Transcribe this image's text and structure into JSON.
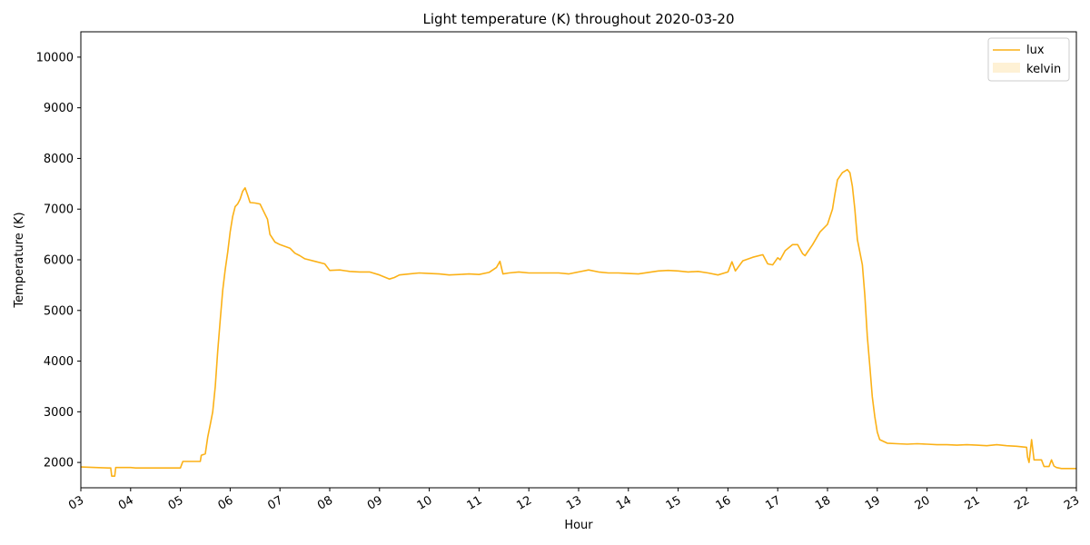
{
  "chart_data": {
    "type": "line",
    "title": "Light temperature (K) throughout 2020-03-20",
    "xlabel": "Hour",
    "ylabel": "Temperature (K)",
    "xlim": [
      3,
      23
    ],
    "ylim": [
      1500,
      10500
    ],
    "x_ticks": [
      3,
      4,
      5,
      6,
      7,
      8,
      9,
      10,
      11,
      12,
      13,
      14,
      15,
      16,
      17,
      18,
      19,
      20,
      21,
      22,
      23
    ],
    "x_tick_labels": [
      "03",
      "04",
      "05",
      "06",
      "07",
      "08",
      "09",
      "10",
      "11",
      "12",
      "13",
      "14",
      "15",
      "16",
      "17",
      "18",
      "19",
      "20",
      "21",
      "22",
      "23"
    ],
    "y_ticks": [
      2000,
      3000,
      4000,
      5000,
      6000,
      7000,
      8000,
      9000,
      10000
    ],
    "y_tick_labels": [
      "2000",
      "3000",
      "4000",
      "5000",
      "6000",
      "7000",
      "8000",
      "9000",
      "10000"
    ],
    "grid": false,
    "legend_position": "top-right",
    "series": [
      {
        "name": "lux",
        "style": "line",
        "color": "#FBB117",
        "points": [
          [
            3.0,
            1910
          ],
          [
            3.3,
            1900
          ],
          [
            3.55,
            1890
          ],
          [
            3.6,
            1890
          ],
          [
            3.62,
            1730
          ],
          [
            3.68,
            1730
          ],
          [
            3.7,
            1900
          ],
          [
            4.0,
            1900
          ],
          [
            4.1,
            1890
          ],
          [
            4.5,
            1890
          ],
          [
            5.0,
            1890
          ],
          [
            5.05,
            2020
          ],
          [
            5.4,
            2020
          ],
          [
            5.42,
            2140
          ],
          [
            5.5,
            2170
          ],
          [
            5.55,
            2500
          ],
          [
            5.6,
            2750
          ],
          [
            5.65,
            3000
          ],
          [
            5.7,
            3500
          ],
          [
            5.75,
            4200
          ],
          [
            5.8,
            4800
          ],
          [
            5.85,
            5400
          ],
          [
            5.9,
            5800
          ],
          [
            5.95,
            6150
          ],
          [
            6.0,
            6550
          ],
          [
            6.05,
            6850
          ],
          [
            6.1,
            7050
          ],
          [
            6.15,
            7100
          ],
          [
            6.2,
            7200
          ],
          [
            6.25,
            7350
          ],
          [
            6.3,
            7420
          ],
          [
            6.35,
            7280
          ],
          [
            6.4,
            7130
          ],
          [
            6.5,
            7120
          ],
          [
            6.6,
            7100
          ],
          [
            6.65,
            7000
          ],
          [
            6.75,
            6800
          ],
          [
            6.8,
            6500
          ],
          [
            6.9,
            6350
          ],
          [
            7.0,
            6300
          ],
          [
            7.2,
            6230
          ],
          [
            7.3,
            6130
          ],
          [
            7.4,
            6080
          ],
          [
            7.5,
            6020
          ],
          [
            7.7,
            5970
          ],
          [
            7.9,
            5920
          ],
          [
            8.0,
            5790
          ],
          [
            8.2,
            5800
          ],
          [
            8.4,
            5770
          ],
          [
            8.6,
            5760
          ],
          [
            8.8,
            5760
          ],
          [
            9.0,
            5700
          ],
          [
            9.2,
            5620
          ],
          [
            9.3,
            5650
          ],
          [
            9.4,
            5700
          ],
          [
            9.6,
            5720
          ],
          [
            9.8,
            5740
          ],
          [
            10.0,
            5730
          ],
          [
            10.2,
            5720
          ],
          [
            10.4,
            5700
          ],
          [
            10.6,
            5710
          ],
          [
            10.8,
            5720
          ],
          [
            11.0,
            5710
          ],
          [
            11.2,
            5750
          ],
          [
            11.35,
            5850
          ],
          [
            11.42,
            5970
          ],
          [
            11.48,
            5720
          ],
          [
            11.6,
            5740
          ],
          [
            11.8,
            5760
          ],
          [
            12.0,
            5740
          ],
          [
            12.2,
            5740
          ],
          [
            12.4,
            5740
          ],
          [
            12.6,
            5740
          ],
          [
            12.8,
            5720
          ],
          [
            13.0,
            5760
          ],
          [
            13.2,
            5800
          ],
          [
            13.4,
            5760
          ],
          [
            13.6,
            5740
          ],
          [
            13.8,
            5740
          ],
          [
            14.0,
            5730
          ],
          [
            14.2,
            5720
          ],
          [
            14.4,
            5750
          ],
          [
            14.6,
            5780
          ],
          [
            14.8,
            5790
          ],
          [
            15.0,
            5780
          ],
          [
            15.2,
            5760
          ],
          [
            15.4,
            5770
          ],
          [
            15.6,
            5740
          ],
          [
            15.8,
            5700
          ],
          [
            16.0,
            5760
          ],
          [
            16.08,
            5960
          ],
          [
            16.15,
            5780
          ],
          [
            16.3,
            5980
          ],
          [
            16.5,
            6050
          ],
          [
            16.7,
            6100
          ],
          [
            16.8,
            5920
          ],
          [
            16.9,
            5900
          ],
          [
            17.0,
            6040
          ],
          [
            17.05,
            6000
          ],
          [
            17.15,
            6180
          ],
          [
            17.3,
            6300
          ],
          [
            17.4,
            6300
          ],
          [
            17.5,
            6120
          ],
          [
            17.55,
            6080
          ],
          [
            17.7,
            6300
          ],
          [
            17.85,
            6550
          ],
          [
            18.0,
            6700
          ],
          [
            18.1,
            7000
          ],
          [
            18.15,
            7300
          ],
          [
            18.2,
            7580
          ],
          [
            18.3,
            7720
          ],
          [
            18.4,
            7780
          ],
          [
            18.45,
            7720
          ],
          [
            18.5,
            7450
          ],
          [
            18.55,
            7000
          ],
          [
            18.6,
            6400
          ],
          [
            18.7,
            5900
          ],
          [
            18.75,
            5300
          ],
          [
            18.8,
            4500
          ],
          [
            18.85,
            3900
          ],
          [
            18.9,
            3300
          ],
          [
            18.95,
            2900
          ],
          [
            19.0,
            2600
          ],
          [
            19.05,
            2450
          ],
          [
            19.2,
            2380
          ],
          [
            19.4,
            2370
          ],
          [
            19.6,
            2360
          ],
          [
            19.8,
            2370
          ],
          [
            20.0,
            2360
          ],
          [
            20.2,
            2350
          ],
          [
            20.4,
            2350
          ],
          [
            20.6,
            2340
          ],
          [
            20.8,
            2350
          ],
          [
            21.0,
            2340
          ],
          [
            21.2,
            2330
          ],
          [
            21.4,
            2350
          ],
          [
            21.6,
            2330
          ],
          [
            21.8,
            2320
          ],
          [
            22.0,
            2300
          ],
          [
            22.02,
            2100
          ],
          [
            22.05,
            2000
          ],
          [
            22.1,
            2450
          ],
          [
            22.15,
            2050
          ],
          [
            22.3,
            2050
          ],
          [
            22.35,
            1920
          ],
          [
            22.45,
            1920
          ],
          [
            22.5,
            2050
          ],
          [
            22.55,
            1930
          ],
          [
            22.6,
            1900
          ],
          [
            22.7,
            1880
          ],
          [
            22.8,
            1880
          ],
          [
            23.0,
            1880
          ]
        ]
      },
      {
        "name": "kelvin",
        "style": "area",
        "color": "#FBB117",
        "points": []
      }
    ]
  }
}
